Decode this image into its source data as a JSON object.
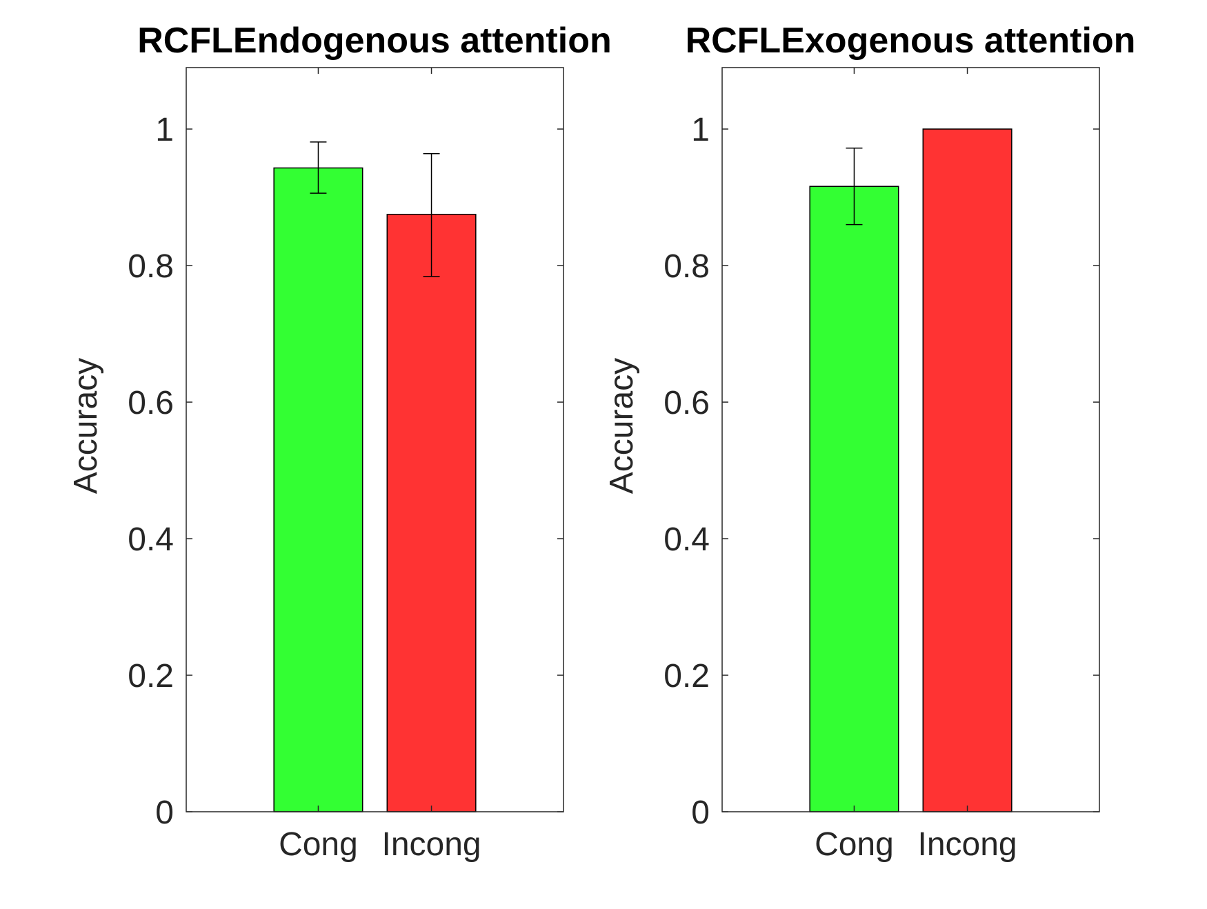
{
  "chart_data": [
    {
      "type": "bar",
      "title": "RCFLEndogenous attention",
      "xlabel": "",
      "ylabel": "Accuracy",
      "categories": [
        "Cong",
        "Incong"
      ],
      "values": [
        0.943,
        0.875
      ],
      "error_low": [
        0.906,
        0.784
      ],
      "error_high": [
        0.981,
        0.964
      ],
      "colors": [
        "#33ff33",
        "#ff3333"
      ],
      "ylim": [
        0,
        1.09
      ],
      "yticks": [
        "0",
        "0.2",
        "0.4",
        "0.6",
        "0.8",
        "1"
      ],
      "ytick_values": [
        0,
        0.2,
        0.4,
        0.6,
        0.8,
        1
      ],
      "grid": false
    },
    {
      "type": "bar",
      "title": "RCFLExogenous attention",
      "xlabel": "",
      "ylabel": "Accuracy",
      "categories": [
        "Cong",
        "Incong"
      ],
      "values": [
        0.916,
        1.0
      ],
      "error_low": [
        0.86,
        null
      ],
      "error_high": [
        0.972,
        null
      ],
      "colors": [
        "#33ff33",
        "#ff3333"
      ],
      "ylim": [
        0,
        1.09
      ],
      "yticks": [
        "0",
        "0.2",
        "0.4",
        "0.6",
        "0.8",
        "1"
      ],
      "ytick_values": [
        0,
        0.2,
        0.4,
        0.6,
        0.8,
        1
      ],
      "grid": false
    }
  ]
}
